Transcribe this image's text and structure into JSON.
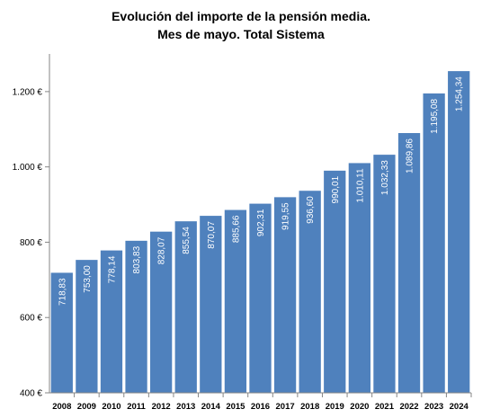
{
  "chart_data": {
    "type": "bar",
    "title_line1": "Evolución del importe de la pensión media.",
    "title_line2": "Mes de mayo. Total Sistema",
    "categories": [
      "2008",
      "2009",
      "2010",
      "2011",
      "2012",
      "2013",
      "2014",
      "2015",
      "2016",
      "2017",
      "2018",
      "2019",
      "2020",
      "2021",
      "2022",
      "2023",
      "2024"
    ],
    "values": [
      718.83,
      753.0,
      778.14,
      803.83,
      828.07,
      855.54,
      870.07,
      885.66,
      902.31,
      919.55,
      936.6,
      990.01,
      1010.11,
      1032.33,
      1089.86,
      1195.08,
      1254.34
    ],
    "value_labels": [
      "718,83",
      "753,00",
      "778,14",
      "803,83",
      "828,07",
      "855,54",
      "870,07",
      "885,66",
      "902,31",
      "919,55",
      "936,60",
      "990,01",
      "1.010,11",
      "1.032,33",
      "1.089,86",
      "1.195,08",
      "1.254,34"
    ],
    "ylim": [
      400,
      1300
    ],
    "yticks": [
      400,
      600,
      800,
      1000,
      1200
    ],
    "ytick_labels": [
      "400 €",
      "600 €",
      "800 €",
      "1.000 €",
      "1.200 €"
    ],
    "bar_color": "#4f81bd",
    "grid": false,
    "legend": "none"
  }
}
